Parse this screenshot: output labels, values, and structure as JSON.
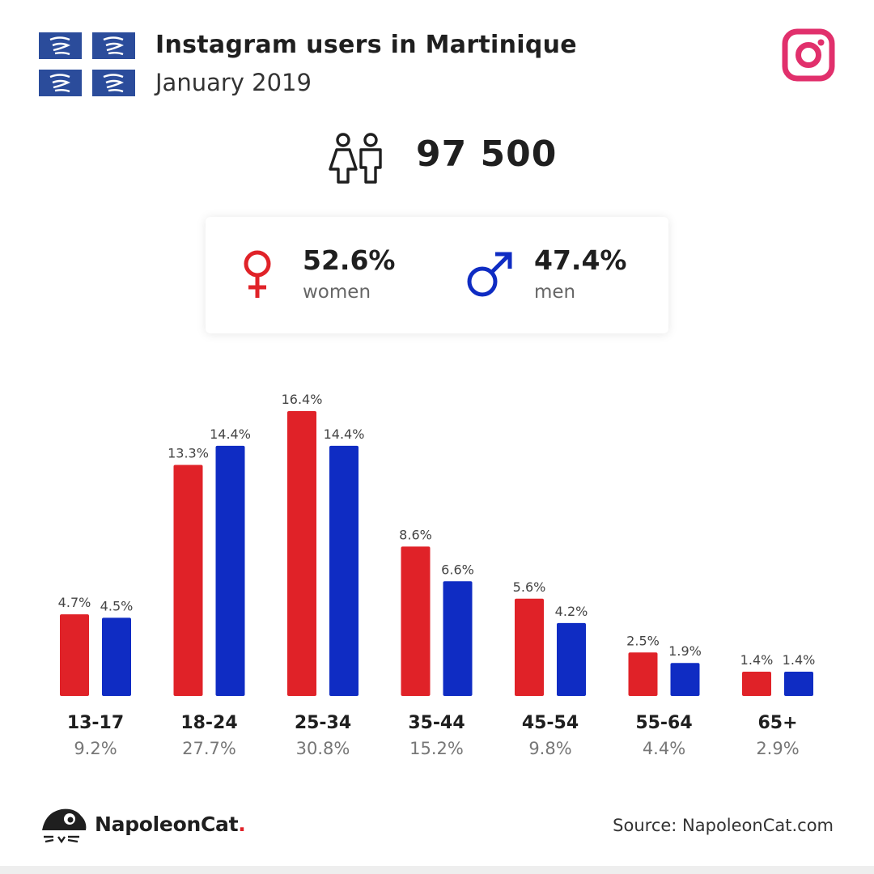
{
  "header": {
    "title": "Instagram users in Martinique",
    "subtitle": "January 2019"
  },
  "icons": {
    "flag": "martinique-flag-icon",
    "instagram": "instagram-icon",
    "users": "users-icon",
    "female": "female-icon",
    "male": "male-icon",
    "logo": "napoleoncat-logo-icon"
  },
  "total": {
    "value": "97 500"
  },
  "gender": {
    "women": {
      "pct": "52.6%",
      "label": "women"
    },
    "men": {
      "pct": "47.4%",
      "label": "men"
    }
  },
  "colors": {
    "women": "#e02228",
    "men": "#0f2cc3",
    "instagram": "#e1306c",
    "flag_blue": "#2b4c9b"
  },
  "chart_data": {
    "type": "bar",
    "categories": [
      "13-17",
      "18-24",
      "25-34",
      "35-44",
      "45-54",
      "55-64",
      "65+"
    ],
    "series": [
      {
        "name": "women",
        "values": [
          4.7,
          13.3,
          16.4,
          8.6,
          5.6,
          2.5,
          1.4
        ],
        "labels": [
          "4.7%",
          "13.3%",
          "16.4%",
          "8.6%",
          "5.6%",
          "2.5%",
          "1.4%"
        ]
      },
      {
        "name": "men",
        "values": [
          4.5,
          14.4,
          14.4,
          6.6,
          4.2,
          1.9,
          1.4
        ],
        "labels": [
          "4.5%",
          "14.4%",
          "14.4%",
          "6.6%",
          "4.2%",
          "1.9%",
          "1.4%"
        ]
      }
    ],
    "totals": [
      "9.2%",
      "27.7%",
      "30.8%",
      "15.2%",
      "9.8%",
      "4.4%",
      "2.9%"
    ],
    "unit": "%",
    "ylim": [
      0,
      16.4
    ],
    "grid": false
  },
  "footer": {
    "brand": "NapoleonCat",
    "brand_dot": ".",
    "source": "Source: NapoleonCat.com"
  }
}
